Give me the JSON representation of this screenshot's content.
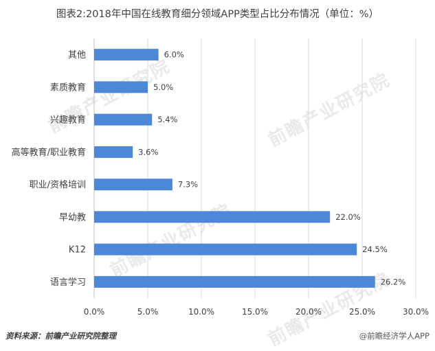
{
  "title": "图表2:2018年中国在线教育细分领域APP类型占比分布情况（单位：%）",
  "source": "资料来源：前瞻产业研究院整理",
  "credit": "@前瞻经济学人APP",
  "watermark": "前瞻产业研究院",
  "chart_data": {
    "type": "bar",
    "orientation": "horizontal",
    "categories": [
      "其他",
      "素质教育",
      "兴趣教育",
      "高等教育/职业教育",
      "职业/资格培训",
      "早幼教",
      "K12",
      "语言学习"
    ],
    "values": [
      6.0,
      5.0,
      5.4,
      3.6,
      7.3,
      22.0,
      24.5,
      26.2
    ],
    "value_labels": [
      "6.0%",
      "5.0%",
      "5.4%",
      "3.6%",
      "7.3%",
      "22.0%",
      "24.5%",
      "26.2%"
    ],
    "xlim": [
      0,
      30
    ],
    "xticks": [
      "0.0%",
      "5.0%",
      "10.0%",
      "15.0%",
      "20.0%",
      "25.0%",
      "30.0%"
    ],
    "grid": "vertical",
    "bar_color": "#4d87d8"
  }
}
